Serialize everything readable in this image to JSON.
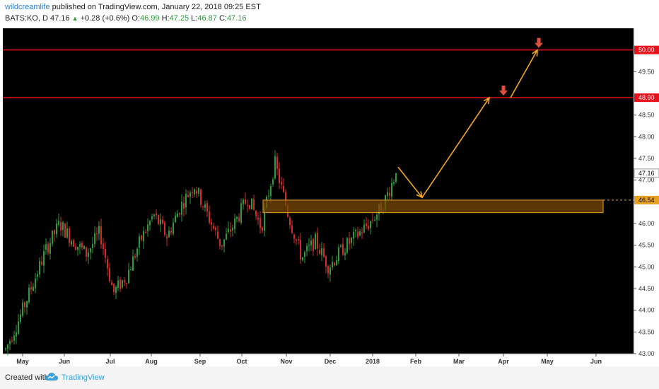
{
  "header": {
    "author": "wildcreamlife",
    "published": "published on TradingView.com, January 22, 2018 09:25 EST",
    "symbol": "BATS:KO, D",
    "last": "47.16",
    "change": "+0.28 (+0.6%)",
    "o_label": "O:",
    "o_value": "46.99",
    "h_label": "H:",
    "h_value": "47.25",
    "l_label": "L:",
    "l_value": "46.87",
    "c_label": "C:",
    "c_value": "47.16"
  },
  "footer": {
    "created_with": "Created with",
    "brand": "TradingView"
  },
  "colors": {
    "up": "#2e9a3b",
    "down": "#d22b2b",
    "resistance": "#e8121c",
    "arrow": "#f5a623",
    "zone": "#7a4a0a",
    "zone_border": "#e8a020"
  },
  "chart_data": {
    "type": "candlestick",
    "ylim": [
      43.0,
      50.5
    ],
    "y_ticks": [
      "43.00",
      "43.50",
      "44.00",
      "44.50",
      "45.00",
      "45.50",
      "46.00",
      "46.50",
      "47.00",
      "47.50",
      "48.00",
      "48.50",
      "48.90",
      "49.50",
      "50.00"
    ],
    "x_ticks": [
      "May",
      "Jun",
      "Jul",
      "Aug",
      "Sep",
      "Oct",
      "Nov",
      "Dec",
      "2018",
      "Feb",
      "Mar",
      "Apr",
      "May",
      "Jun"
    ],
    "resistance_levels": [
      {
        "value": 50.0,
        "label": "50.00"
      },
      {
        "value": 48.9,
        "label": "48.90"
      }
    ],
    "support_zone": {
      "from": 46.25,
      "to": 46.54,
      "label": "46.54",
      "start": "Oct",
      "end": "Jun"
    },
    "last_price": {
      "value": 47.16,
      "label": "47.16"
    },
    "projection_path": [
      {
        "month": "Jan",
        "price": 47.3
      },
      {
        "month": "Feb",
        "price": 46.6
      },
      {
        "month": "Apr",
        "price": 48.9
      },
      {
        "month": "Apr",
        "price": 48.9
      },
      {
        "month": "May",
        "price": 50.0
      }
    ],
    "price_path": [
      43.1,
      43.8,
      44.6,
      45.4,
      46.0,
      45.6,
      45.3,
      45.8,
      44.4,
      44.8,
      45.6,
      46.2,
      45.7,
      46.4,
      46.9,
      46.2,
      45.5,
      46.0,
      46.6,
      45.9,
      47.4,
      46.2,
      45.2,
      45.6,
      45.0,
      45.4,
      45.7,
      46.0,
      46.4,
      47.16
    ],
    "path_months": [
      "May",
      "May",
      "May",
      "Jun",
      "Jun",
      "Jun",
      "Jun",
      "Jul",
      "Jul",
      "Jul",
      "Aug",
      "Aug",
      "Aug",
      "Sep",
      "Sep",
      "Sep",
      "Oct",
      "Oct",
      "Oct",
      "Oct",
      "Nov",
      "Nov",
      "Nov",
      "Dec",
      "Dec",
      "Dec",
      "Dec",
      "2018",
      "2018",
      "2018"
    ]
  }
}
